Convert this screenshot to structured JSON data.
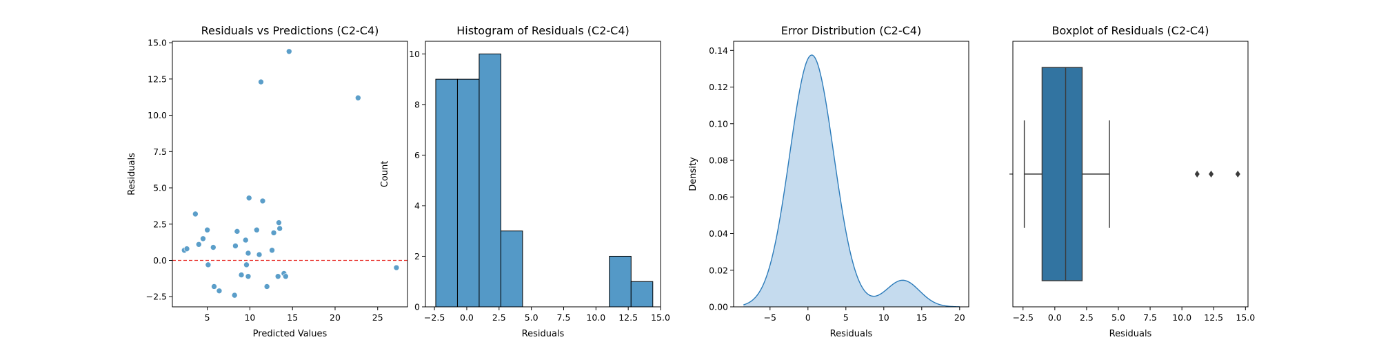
{
  "chart_data": [
    {
      "type": "scatter",
      "title": "Residuals vs Predictions (C2-C4)",
      "xlabel": "Predicted Values",
      "ylabel": "Residuals",
      "xlim": [
        0.9,
        28.5
      ],
      "ylim": [
        -3.2,
        15.1
      ],
      "xticks": [
        5,
        10,
        15,
        20,
        25
      ],
      "xtick_labels": [
        "5",
        "10",
        "15",
        "20",
        "25"
      ],
      "yticks": [
        -2.5,
        0.0,
        2.5,
        5.0,
        7.5,
        10.0,
        12.5,
        15.0
      ],
      "ytick_labels": [
        "−2.5",
        "0.0",
        "2.5",
        "5.0",
        "7.5",
        "10.0",
        "12.5",
        "15.0"
      ],
      "point_color": "#5b9ec9",
      "reference_line": {
        "y": 0,
        "color": "#e8302a",
        "style": "dashed"
      },
      "points": [
        {
          "x": 2.3,
          "y": 0.7
        },
        {
          "x": 2.6,
          "y": 0.8
        },
        {
          "x": 3.6,
          "y": 3.2
        },
        {
          "x": 4.0,
          "y": 1.1
        },
        {
          "x": 4.5,
          "y": 1.5
        },
        {
          "x": 5.0,
          "y": 2.1
        },
        {
          "x": 5.1,
          "y": -0.3
        },
        {
          "x": 5.7,
          "y": 0.9
        },
        {
          "x": 5.8,
          "y": -1.8
        },
        {
          "x": 6.4,
          "y": -2.1
        },
        {
          "x": 8.2,
          "y": -2.4
        },
        {
          "x": 8.3,
          "y": 1.0
        },
        {
          "x": 8.5,
          "y": 2.0
        },
        {
          "x": 9.0,
          "y": -1.0
        },
        {
          "x": 9.5,
          "y": 1.4
        },
        {
          "x": 9.6,
          "y": -0.3
        },
        {
          "x": 9.8,
          "y": 0.5
        },
        {
          "x": 9.8,
          "y": -1.1
        },
        {
          "x": 9.9,
          "y": 4.3
        },
        {
          "x": 10.8,
          "y": 2.1
        },
        {
          "x": 11.1,
          "y": 0.4
        },
        {
          "x": 11.3,
          "y": 12.3
        },
        {
          "x": 11.5,
          "y": 4.1
        },
        {
          "x": 12.0,
          "y": -1.8
        },
        {
          "x": 12.6,
          "y": 0.7
        },
        {
          "x": 12.8,
          "y": 1.9
        },
        {
          "x": 13.3,
          "y": -1.1
        },
        {
          "x": 13.4,
          "y": 2.6
        },
        {
          "x": 13.5,
          "y": 2.2
        },
        {
          "x": 14.0,
          "y": -0.9
        },
        {
          "x": 14.2,
          "y": -1.1
        },
        {
          "x": 14.6,
          "y": 14.4
        },
        {
          "x": 22.7,
          "y": 11.2
        },
        {
          "x": 27.2,
          "y": -0.5
        }
      ]
    },
    {
      "type": "bar",
      "title": "Histogram of Residuals (C2-C4)",
      "xlabel": "Residuals",
      "ylabel": "Count",
      "xlim": [
        -3.2,
        15.0
      ],
      "ylim": [
        0,
        10.5
      ],
      "xticks": [
        -2.5,
        0.0,
        2.5,
        5.0,
        7.5,
        10.0,
        12.5,
        15.0
      ],
      "xtick_labels": [
        "−2.5",
        "0.0",
        "2.5",
        "5.0",
        "7.5",
        "10.0",
        "12.5",
        "15.0"
      ],
      "yticks": [
        0,
        2,
        4,
        6,
        8,
        10
      ],
      "ytick_labels": [
        "0",
        "2",
        "4",
        "6",
        "8",
        "10"
      ],
      "bar_color": "#5499c7",
      "bins": [
        {
          "start": -2.4,
          "end": -0.72,
          "count": 9
        },
        {
          "start": -0.72,
          "end": 0.96,
          "count": 9
        },
        {
          "start": 0.96,
          "end": 2.64,
          "count": 10
        },
        {
          "start": 2.64,
          "end": 4.32,
          "count": 3
        },
        {
          "start": 4.32,
          "end": 6.0,
          "count": 0
        },
        {
          "start": 6.0,
          "end": 7.68,
          "count": 0
        },
        {
          "start": 7.68,
          "end": 9.36,
          "count": 0
        },
        {
          "start": 9.36,
          "end": 11.04,
          "count": 0
        },
        {
          "start": 11.04,
          "end": 12.72,
          "count": 2
        },
        {
          "start": 12.72,
          "end": 14.4,
          "count": 1
        }
      ]
    },
    {
      "type": "area",
      "title": "Error Distribution (C2-C4)",
      "xlabel": "Residuals",
      "ylabel": "Density",
      "xlim": [
        -9.8,
        21.2
      ],
      "ylim": [
        0,
        0.145
      ],
      "xticks": [
        -5,
        0,
        5,
        10,
        15,
        20
      ],
      "xtick_labels": [
        "−5",
        "0",
        "5",
        "10",
        "15",
        "20"
      ],
      "yticks": [
        0.0,
        0.02,
        0.04,
        0.06,
        0.08,
        0.1,
        0.12,
        0.14
      ],
      "ytick_labels": [
        "0.00",
        "0.02",
        "0.04",
        "0.06",
        "0.08",
        "0.10",
        "0.12",
        "0.14"
      ],
      "line_color": "#2b7bba",
      "fill_color": "#c5dbee",
      "x_range": [
        -8.5,
        20.0
      ],
      "components": [
        {
          "mean": 0.5,
          "sd": 2.9,
          "amplitude": 0.1375
        },
        {
          "mean": 12.5,
          "sd": 2.2,
          "amplitude": 0.0145
        }
      ]
    },
    {
      "type": "boxplot",
      "title": "Boxplot of Residuals (C2-C4)",
      "xlabel": "Residuals",
      "xlim": [
        -3.3,
        15.2
      ],
      "xticks": [
        -2.5,
        0.0,
        2.5,
        5.0,
        7.5,
        10.0,
        12.5,
        15.0
      ],
      "xtick_labels": [
        "−2.5",
        "0.0",
        "2.5",
        "5.0",
        "7.5",
        "10.0",
        "12.5",
        "15.0"
      ],
      "box_color": "#3274a1",
      "whisker_low": -2.4,
      "q1": -1.0,
      "median": 0.85,
      "q3": 2.15,
      "whisker_high": 4.3,
      "outliers": [
        11.2,
        12.3,
        14.4
      ]
    }
  ]
}
